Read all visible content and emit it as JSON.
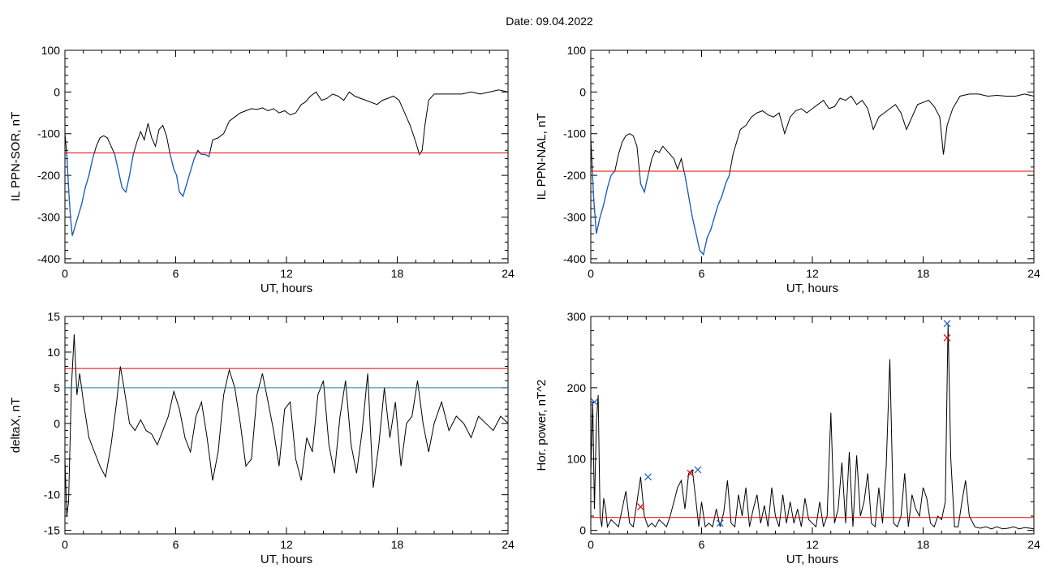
{
  "title": "Date:  09.04.2022",
  "chart_data": [
    {
      "type": "line",
      "id": "sor",
      "xlabel": "UT, hours",
      "ylabel": "IL PPN-SOR, nT",
      "xlim": [
        0,
        24
      ],
      "ylim": [
        -410,
        100
      ],
      "xticks": [
        0,
        6,
        12,
        18,
        24
      ],
      "yticks": [
        -400,
        -300,
        -200,
        -100,
        0,
        100
      ],
      "threshold": {
        "value": -146,
        "color": "#e00000"
      },
      "highlight_color": "#1f5fbf",
      "highlight_rule": "below_threshold",
      "series": [
        {
          "x": [
            0,
            0.1,
            0.2,
            0.3,
            0.4,
            0.5,
            0.7,
            0.9,
            1.1,
            1.3,
            1.5,
            1.7,
            1.9,
            2.1,
            2.3,
            2.5,
            2.7,
            2.9,
            3.1,
            3.3,
            3.5,
            3.7,
            3.9,
            4.1,
            4.3,
            4.5,
            4.7,
            4.9,
            5.1,
            5.3,
            5.5,
            5.7,
            5.9,
            6.05,
            6.2,
            6.4,
            6.6,
            6.8,
            7.0,
            7.2,
            7.4,
            7.6,
            7.8,
            8.0,
            8.3,
            8.6,
            8.9,
            9.2,
            9.5,
            9.8,
            10.1,
            10.4,
            10.7,
            11.0,
            11.3,
            11.6,
            11.9,
            12.2,
            12.5,
            12.8,
            13.0,
            13.3,
            13.6,
            13.9,
            14.2,
            14.5,
            14.8,
            15.1,
            15.4,
            15.7,
            16.0,
            16.3,
            16.6,
            16.9,
            17.2,
            17.5,
            17.8,
            18.1,
            18.4,
            18.7,
            19.0,
            19.2,
            19.35,
            19.5,
            19.7,
            20.0,
            20.5,
            21.0,
            21.5,
            22.0,
            22.5,
            23.0,
            23.5,
            24.0
          ],
          "y": [
            -100,
            -150,
            -230,
            -300,
            -345,
            -330,
            -300,
            -270,
            -230,
            -200,
            -160,
            -130,
            -110,
            -105,
            -110,
            -130,
            -150,
            -190,
            -230,
            -240,
            -200,
            -150,
            -120,
            -95,
            -115,
            -75,
            -110,
            -130,
            -90,
            -80,
            -105,
            -150,
            -185,
            -200,
            -240,
            -250,
            -220,
            -190,
            -160,
            -140,
            -150,
            -150,
            -155,
            -115,
            -110,
            -100,
            -70,
            -60,
            -50,
            -45,
            -40,
            -42,
            -38,
            -45,
            -40,
            -50,
            -45,
            -55,
            -50,
            -30,
            -25,
            -10,
            0,
            -20,
            -15,
            -5,
            -10,
            -20,
            0,
            -10,
            -15,
            -20,
            -25,
            -30,
            -20,
            -15,
            -10,
            -20,
            -50,
            -80,
            -120,
            -150,
            -140,
            -80,
            -20,
            -5,
            -5,
            -5,
            -5,
            0,
            -5,
            0,
            5,
            0
          ]
        }
      ]
    },
    {
      "type": "line",
      "id": "nal",
      "xlabel": "UT, hours",
      "ylabel": "IL PPN-NAL, nT",
      "xlim": [
        0,
        24
      ],
      "ylim": [
        -410,
        100
      ],
      "xticks": [
        0,
        6,
        12,
        18,
        24
      ],
      "yticks": [
        -400,
        -300,
        -200,
        -100,
        0,
        100
      ],
      "threshold": {
        "value": -190,
        "color": "#e00000"
      },
      "highlight_color": "#1f5fbf",
      "highlight_rule": "below_threshold",
      "series": [
        {
          "x": [
            0,
            0.15,
            0.3,
            0.5,
            0.7,
            0.9,
            1.1,
            1.3,
            1.5,
            1.7,
            1.9,
            2.1,
            2.3,
            2.5,
            2.7,
            2.9,
            3.1,
            3.3,
            3.5,
            3.7,
            3.9,
            4.1,
            4.3,
            4.5,
            4.7,
            4.9,
            5.1,
            5.3,
            5.5,
            5.7,
            5.9,
            6.1,
            6.3,
            6.5,
            6.7,
            6.9,
            7.1,
            7.3,
            7.5,
            7.7,
            7.9,
            8.1,
            8.4,
            8.7,
            9.0,
            9.3,
            9.6,
            9.9,
            10.2,
            10.5,
            10.8,
            11.1,
            11.4,
            11.7,
            12.0,
            12.3,
            12.6,
            12.9,
            13.2,
            13.5,
            13.8,
            14.1,
            14.4,
            14.7,
            15.0,
            15.3,
            15.6,
            15.9,
            16.2,
            16.5,
            16.8,
            17.1,
            17.4,
            17.7,
            18.0,
            18.3,
            18.6,
            18.9,
            19.1,
            19.3,
            19.6,
            20.0,
            20.5,
            21.0,
            21.5,
            22.0,
            22.5,
            23.0,
            23.5,
            24.0
          ],
          "y": [
            -110,
            -250,
            -340,
            -300,
            -270,
            -230,
            -200,
            -190,
            -150,
            -120,
            -105,
            -100,
            -105,
            -130,
            -220,
            -240,
            -200,
            -160,
            -140,
            -145,
            -130,
            -140,
            -150,
            -160,
            -185,
            -160,
            -200,
            -250,
            -300,
            -340,
            -380,
            -390,
            -350,
            -330,
            -300,
            -270,
            -250,
            -220,
            -200,
            -150,
            -120,
            -90,
            -80,
            -60,
            -50,
            -45,
            -55,
            -60,
            -50,
            -100,
            -60,
            -45,
            -40,
            -50,
            -40,
            -30,
            -20,
            -40,
            -35,
            -15,
            -20,
            -10,
            -30,
            -20,
            -40,
            -90,
            -60,
            -50,
            -40,
            -30,
            -50,
            -90,
            -60,
            -30,
            -25,
            -20,
            -35,
            -60,
            -150,
            -80,
            -40,
            -10,
            -5,
            -5,
            -10,
            -8,
            -10,
            -10,
            -5,
            -10
          ]
        }
      ]
    },
    {
      "type": "line",
      "id": "deltax",
      "xlabel": "UT, hours",
      "ylabel": "deltaX, nT",
      "xlim": [
        0,
        24
      ],
      "ylim": [
        -15.5,
        15
      ],
      "xticks": [
        0,
        6,
        12,
        18,
        24
      ],
      "yticks": [
        -15,
        -10,
        -5,
        0,
        5,
        10,
        15
      ],
      "thresholds": [
        {
          "value": 7.7,
          "color": "#e00000"
        },
        {
          "value": 5.0,
          "color": "#1f7f8f"
        }
      ],
      "series": [
        {
          "x": [
            0,
            0.1,
            0.2,
            0.35,
            0.5,
            0.65,
            0.8,
            1.0,
            1.3,
            1.6,
            1.9,
            2.2,
            2.5,
            2.8,
            3.0,
            3.2,
            3.5,
            3.8,
            4.1,
            4.4,
            4.7,
            5.0,
            5.3,
            5.6,
            5.9,
            6.2,
            6.5,
            6.8,
            7.1,
            7.4,
            7.7,
            8.0,
            8.3,
            8.6,
            8.9,
            9.2,
            9.5,
            9.8,
            10.1,
            10.4,
            10.7,
            11.0,
            11.3,
            11.6,
            11.9,
            12.2,
            12.5,
            12.8,
            13.1,
            13.4,
            13.7,
            14.0,
            14.3,
            14.6,
            14.9,
            15.2,
            15.5,
            15.8,
            16.1,
            16.4,
            16.7,
            17.0,
            17.3,
            17.6,
            17.9,
            18.2,
            18.5,
            18.8,
            19.1,
            19.4,
            19.7,
            20.0,
            20.4,
            20.8,
            21.2,
            21.6,
            22.0,
            22.4,
            22.8,
            23.2,
            23.6,
            24.0
          ],
          "y": [
            -5,
            -13,
            -11,
            5,
            12.5,
            4,
            7,
            3,
            -2,
            -4,
            -6,
            -7.5,
            -3,
            3,
            8,
            5,
            0,
            -1,
            0.5,
            -1,
            -1.5,
            -3,
            -1,
            1,
            4.5,
            2,
            -2,
            -4,
            1,
            3,
            -2,
            -8,
            -4,
            4,
            7.5,
            5,
            0,
            -6,
            -5,
            4,
            7,
            3,
            -1,
            -6,
            2,
            3,
            -5,
            -8,
            -2,
            -4,
            4,
            6,
            -3,
            -7,
            1,
            6,
            -3,
            -7,
            -1,
            7,
            -9,
            -3,
            5,
            -2,
            3,
            -6,
            0,
            1,
            6,
            0,
            -4,
            0,
            3,
            -1,
            1,
            0,
            -2,
            1,
            0,
            -1,
            1,
            0
          ]
        }
      ]
    },
    {
      "type": "line",
      "id": "power",
      "xlabel": "UT, hours",
      "ylabel": "Hor. power, nT^2",
      "xlim": [
        0,
        24
      ],
      "ylim": [
        -5,
        300
      ],
      "xticks": [
        0,
        6,
        12,
        18,
        24
      ],
      "yticks": [
        0,
        100,
        200,
        300
      ],
      "threshold": {
        "value": 18,
        "color": "#e00000"
      },
      "series": [
        {
          "x": [
            0,
            0.1,
            0.2,
            0.3,
            0.4,
            0.5,
            0.6,
            0.7,
            0.8,
            0.9,
            1.1,
            1.3,
            1.5,
            1.7,
            1.9,
            2.1,
            2.3,
            2.5,
            2.7,
            2.9,
            3.1,
            3.3,
            3.5,
            3.7,
            3.9,
            4.1,
            4.3,
            4.5,
            4.7,
            4.9,
            5.1,
            5.3,
            5.5,
            5.7,
            5.85,
            6.0,
            6.2,
            6.4,
            6.6,
            6.8,
            7.0,
            7.2,
            7.4,
            7.6,
            7.8,
            8.0,
            8.2,
            8.4,
            8.6,
            8.8,
            9.0,
            9.2,
            9.4,
            9.6,
            9.8,
            10.0,
            10.2,
            10.4,
            10.6,
            10.8,
            11.0,
            11.2,
            11.4,
            11.6,
            11.8,
            12.0,
            12.2,
            12.4,
            12.6,
            12.8,
            13.0,
            13.2,
            13.4,
            13.6,
            13.8,
            14.0,
            14.2,
            14.4,
            14.6,
            14.8,
            15.0,
            15.2,
            15.4,
            15.6,
            15.8,
            16.0,
            16.2,
            16.4,
            16.6,
            16.8,
            17.0,
            17.2,
            17.4,
            17.6,
            17.8,
            18.0,
            18.2,
            18.4,
            18.6,
            18.8,
            19.0,
            19.2,
            19.35,
            19.5,
            19.7,
            19.9,
            20.1,
            20.3,
            20.5,
            20.8,
            21.1,
            21.4,
            21.7,
            22.0,
            22.3,
            22.6,
            22.9,
            23.2,
            23.5,
            23.8,
            24.0
          ],
          "y": [
            80,
            180,
            30,
            150,
            190,
            20,
            5,
            45,
            30,
            5,
            15,
            10,
            5,
            30,
            55,
            10,
            5,
            40,
            75,
            20,
            5,
            10,
            5,
            15,
            10,
            5,
            20,
            40,
            60,
            70,
            30,
            80,
            85,
            40,
            5,
            40,
            5,
            10,
            5,
            30,
            5,
            25,
            70,
            10,
            5,
            50,
            20,
            60,
            5,
            30,
            50,
            10,
            35,
            5,
            60,
            20,
            5,
            50,
            10,
            40,
            10,
            30,
            5,
            45,
            15,
            10,
            5,
            40,
            5,
            20,
            165,
            10,
            30,
            95,
            10,
            110,
            5,
            105,
            20,
            40,
            80,
            10,
            5,
            60,
            10,
            90,
            240,
            10,
            5,
            20,
            80,
            5,
            50,
            30,
            20,
            60,
            45,
            10,
            5,
            20,
            15,
            40,
            290,
            100,
            5,
            5,
            40,
            70,
            20,
            5,
            3,
            5,
            2,
            5,
            2,
            3,
            5,
            2,
            4,
            3,
            2
          ]
        }
      ],
      "markers": [
        {
          "x": 0.2,
          "y": 180,
          "color": "#1f5fbf"
        },
        {
          "x": 2.7,
          "y": 33,
          "color": "#e00000"
        },
        {
          "x": 3.1,
          "y": 75,
          "color": "#1f5fbf"
        },
        {
          "x": 5.4,
          "y": 80,
          "color": "#e00000"
        },
        {
          "x": 5.8,
          "y": 85,
          "color": "#1f5fbf"
        },
        {
          "x": 7.0,
          "y": 10,
          "color": "#1f5fbf"
        },
        {
          "x": 19.3,
          "y": 290,
          "color": "#1f5fbf"
        },
        {
          "x": 19.3,
          "y": 270,
          "color": "#e00000"
        }
      ]
    }
  ]
}
